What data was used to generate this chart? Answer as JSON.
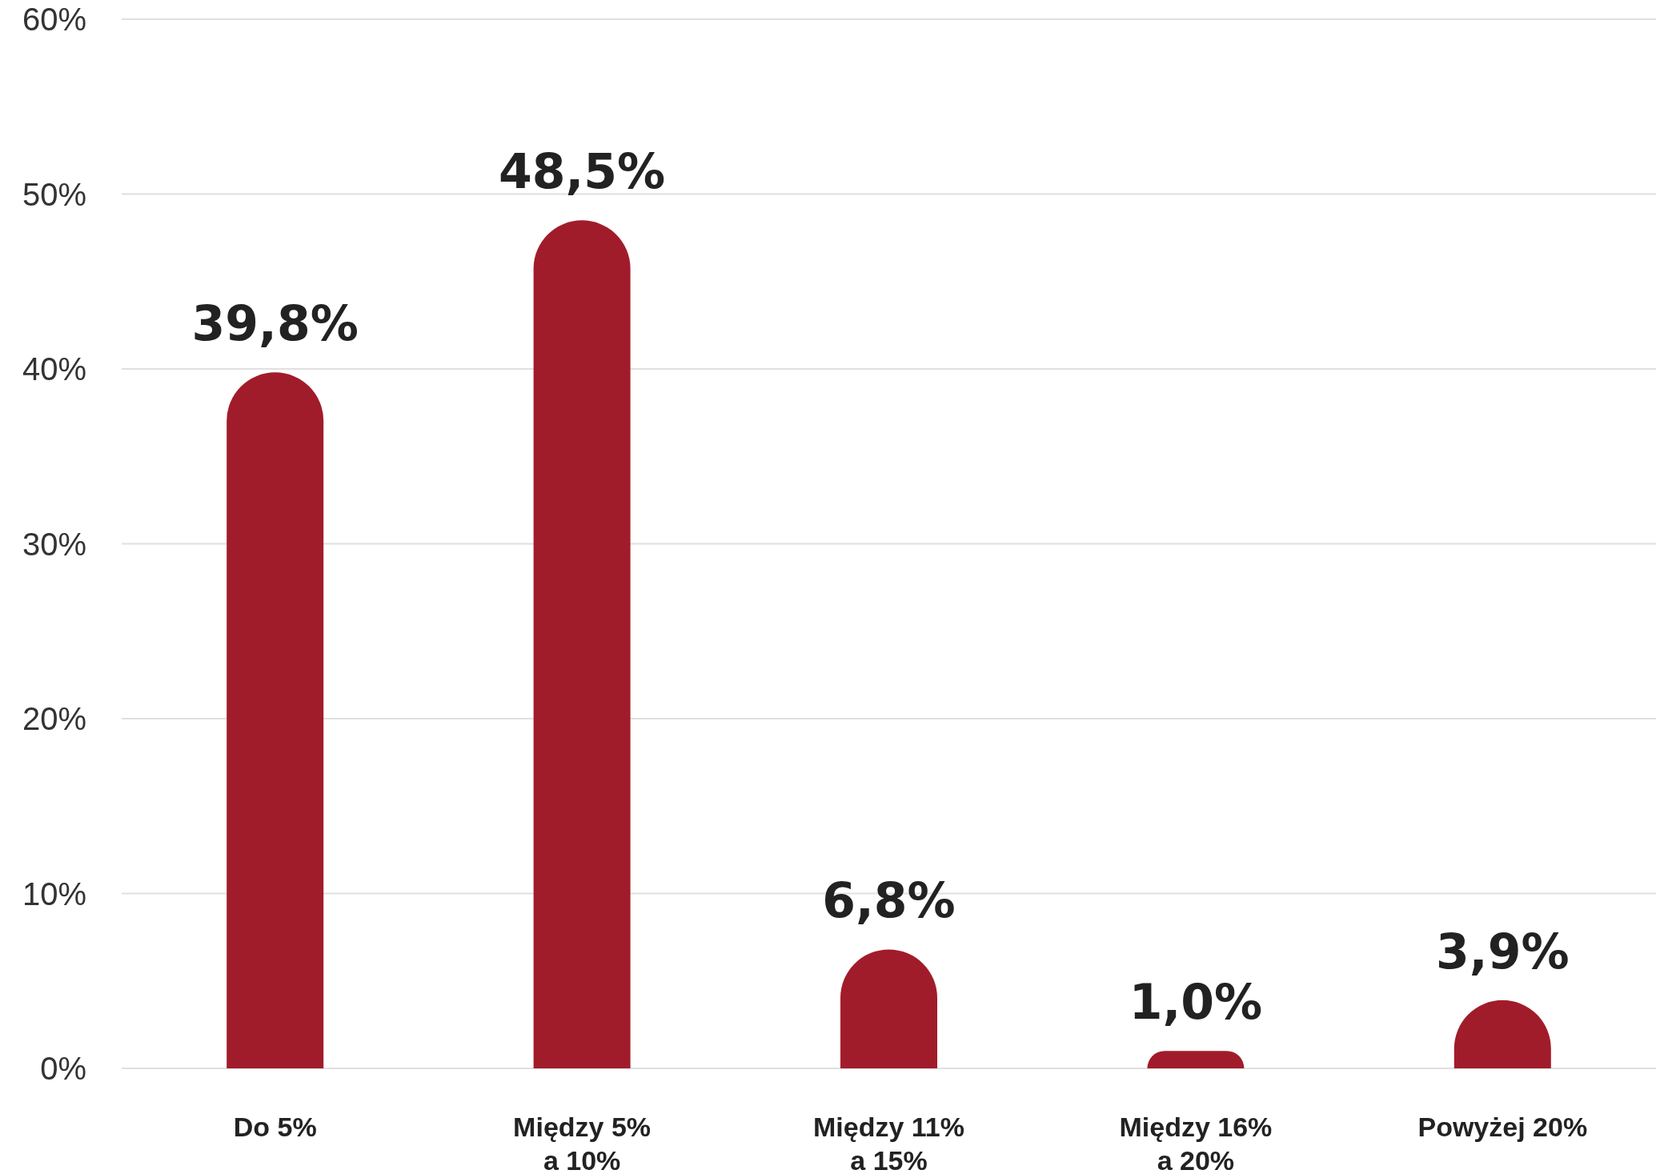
{
  "chart_data": {
    "type": "bar",
    "categories": [
      "Do 5%",
      "Między 5%\na 10%",
      "Między 11%\na 15%",
      "Między 16%\na 20%",
      "Powyżej 20%"
    ],
    "values": [
      39.8,
      48.5,
      6.8,
      1.0,
      3.9
    ],
    "value_labels": [
      "39,8%",
      "48,5%",
      "6,8%",
      "1,0%",
      "3,9%"
    ],
    "color": "#a11c2a",
    "ylim": [
      0,
      60
    ],
    "yticks": [
      {
        "value": 0,
        "label": "0%"
      },
      {
        "value": 10,
        "label": "10%"
      },
      {
        "value": 20,
        "label": "20%"
      },
      {
        "value": 30,
        "label": "30%"
      },
      {
        "value": 40,
        "label": "40%"
      },
      {
        "value": 50,
        "label": "50%"
      },
      {
        "value": 60,
        "label": "60%"
      }
    ],
    "grid": "y"
  }
}
